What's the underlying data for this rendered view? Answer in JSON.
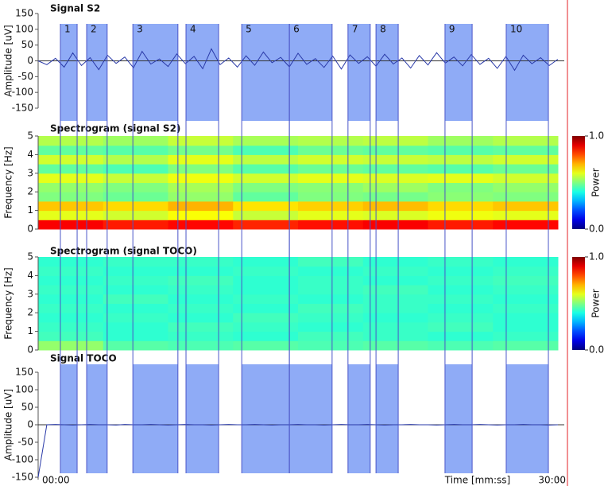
{
  "chart_data": [
    {
      "type": "line",
      "title": "Signal S2",
      "ylabel": "Amplitude  [uV]",
      "color": "#2a3aa8",
      "xlim": [
        0,
        1800
      ],
      "ylim": [
        -150,
        150
      ],
      "yticks": [
        -150,
        -100,
        -50,
        0,
        50,
        100,
        150
      ],
      "segment_color": "#7b9cf5",
      "segments": [
        {
          "label": "1",
          "start": 77,
          "end": 135
        },
        {
          "label": "2",
          "start": 168,
          "end": 239
        },
        {
          "label": "3",
          "start": 328,
          "end": 484
        },
        {
          "label": "4",
          "start": 512,
          "end": 625
        },
        {
          "label": "5",
          "start": 705,
          "end": 870
        },
        {
          "label": "6",
          "start": 870,
          "end": 1018
        },
        {
          "label": "7",
          "start": 1073,
          "end": 1150
        },
        {
          "label": "8",
          "start": 1170,
          "end": 1247
        },
        {
          "label": "9",
          "start": 1409,
          "end": 1503
        },
        {
          "label": "10",
          "start": 1621,
          "end": 1767
        }
      ],
      "x": [
        0,
        30,
        60,
        90,
        120,
        150,
        180,
        210,
        240,
        270,
        300,
        330,
        360,
        390,
        420,
        450,
        480,
        510,
        540,
        570,
        600,
        630,
        660,
        690,
        720,
        750,
        780,
        810,
        840,
        870,
        900,
        930,
        960,
        990,
        1020,
        1050,
        1080,
        1110,
        1140,
        1170,
        1200,
        1230,
        1260,
        1290,
        1320,
        1350,
        1380,
        1410,
        1440,
        1470,
        1500,
        1530,
        1560,
        1590,
        1620,
        1650,
        1680,
        1710,
        1740,
        1770,
        1800
      ],
      "values": [
        0,
        -12,
        8,
        -20,
        25,
        -15,
        10,
        -28,
        18,
        -8,
        12,
        -22,
        30,
        -10,
        6,
        -18,
        22,
        -9,
        14,
        -25,
        38,
        -12,
        9,
        -20,
        16,
        -14,
        28,
        -6,
        11,
        -19,
        24,
        -11,
        7,
        -21,
        15,
        -26,
        19,
        -8,
        13,
        -17,
        21,
        -10,
        9,
        -23,
        17,
        -13,
        26,
        -7,
        12,
        -16,
        20,
        -11,
        8,
        -24,
        14,
        -30,
        18,
        -9,
        10,
        -15,
        5
      ]
    },
    {
      "type": "heatmap",
      "title": "Spectrogram (signal S2)",
      "ylabel": "Frequency  [Hz]",
      "xlim": [
        0,
        1800
      ],
      "ylim": [
        0,
        5
      ],
      "yticks": [
        0,
        1,
        2,
        3,
        4,
        5
      ],
      "zlim": [
        0,
        1
      ],
      "zticks": [
        {
          "value": 0,
          "label": "0.0"
        },
        {
          "value": 1,
          "label": "1.0"
        }
      ],
      "colorbar_label": "Power",
      "z": [
        [
          0.88,
          0.85,
          0.87,
          0.84,
          0.86,
          0.88,
          0.85,
          0.87
        ],
        [
          0.6,
          0.58,
          0.62,
          0.57,
          0.6,
          0.59,
          0.61,
          0.6
        ],
        [
          0.68,
          0.66,
          0.7,
          0.65,
          0.67,
          0.69,
          0.66,
          0.68
        ],
        [
          0.5,
          0.48,
          0.52,
          0.47,
          0.5,
          0.49,
          0.51,
          0.5
        ],
        [
          0.52,
          0.5,
          0.54,
          0.5,
          0.51,
          0.53,
          0.5,
          0.52
        ],
        [
          0.6,
          0.57,
          0.61,
          0.58,
          0.6,
          0.59,
          0.6,
          0.58
        ],
        [
          0.47,
          0.45,
          0.5,
          0.46,
          0.48,
          0.47,
          0.46,
          0.48
        ],
        [
          0.58,
          0.55,
          0.6,
          0.56,
          0.58,
          0.57,
          0.56,
          0.58
        ],
        [
          0.47,
          0.46,
          0.49,
          0.45,
          0.48,
          0.47,
          0.46,
          0.47
        ],
        [
          0.55,
          0.53,
          0.57,
          0.54,
          0.55,
          0.56,
          0.53,
          0.55
        ]
      ]
    },
    {
      "type": "heatmap",
      "title": "Spectrogram (signal TOCO)",
      "ylabel": "Frequency  [Hz]",
      "xlim": [
        0,
        1800
      ],
      "ylim": [
        0,
        5
      ],
      "yticks": [
        0,
        1,
        2,
        3,
        4,
        5
      ],
      "zlim": [
        0,
        1
      ],
      "zticks": [
        {
          "value": 0,
          "label": "0.0"
        },
        {
          "value": 1,
          "label": "1.0"
        }
      ],
      "colorbar_label": "Power",
      "z": [
        [
          0.52,
          0.46,
          0.45,
          0.46,
          0.45,
          0.46,
          0.45,
          0.46
        ],
        [
          0.44,
          0.42,
          0.43,
          0.42,
          0.44,
          0.43,
          0.42,
          0.43
        ],
        [
          0.43,
          0.42,
          0.44,
          0.43,
          0.42,
          0.43,
          0.44,
          0.42
        ],
        [
          0.42,
          0.43,
          0.42,
          0.44,
          0.43,
          0.42,
          0.43,
          0.42
        ],
        [
          0.43,
          0.42,
          0.43,
          0.42,
          0.44,
          0.43,
          0.42,
          0.43
        ],
        [
          0.42,
          0.44,
          0.42,
          0.43,
          0.42,
          0.43,
          0.43,
          0.42
        ],
        [
          0.43,
          0.42,
          0.43,
          0.42,
          0.43,
          0.44,
          0.42,
          0.43
        ],
        [
          0.42,
          0.43,
          0.44,
          0.42,
          0.43,
          0.42,
          0.43,
          0.44
        ],
        [
          0.43,
          0.42,
          0.42,
          0.43,
          0.42,
          0.43,
          0.42,
          0.43
        ],
        [
          0.42,
          0.43,
          0.43,
          0.42,
          0.44,
          0.42,
          0.43,
          0.42
        ]
      ]
    },
    {
      "type": "line",
      "title": "Signal TOCO",
      "ylabel": "Amplitude  [uV]",
      "color": "#2a3aa8",
      "xlim": [
        0,
        1800
      ],
      "ylim": [
        -150,
        150
      ],
      "yticks": [
        -150,
        -100,
        -50,
        0,
        50,
        100,
        150
      ],
      "xticks": [
        {
          "value": 0,
          "label": "00:00"
        },
        {
          "value": 1800,
          "label": "30:00"
        }
      ],
      "xlabel": "Time  [mm:ss]",
      "x": [
        0,
        30,
        60,
        90,
        120,
        150,
        180,
        210,
        240,
        270,
        300,
        330,
        360,
        390,
        420,
        450,
        480,
        510,
        540,
        570,
        600,
        630,
        660,
        690,
        720,
        750,
        780,
        810,
        840,
        870,
        900,
        930,
        960,
        990,
        1020,
        1050,
        1080,
        1110,
        1140,
        1170,
        1200,
        1230,
        1260,
        1290,
        1320,
        1350,
        1380,
        1410,
        1440,
        1470,
        1500,
        1530,
        1560,
        1590,
        1620,
        1650,
        1680,
        1710,
        1740,
        1770,
        1800
      ],
      "values": [
        -150,
        0,
        1,
        0,
        -1,
        0,
        1,
        0,
        0,
        -1,
        1,
        0,
        0,
        1,
        0,
        -1,
        0,
        1,
        0,
        0,
        -1,
        0,
        1,
        0,
        0,
        1,
        0,
        -1,
        0,
        0,
        1,
        0,
        0,
        -1,
        0,
        1,
        0,
        0,
        1,
        0,
        -1,
        0,
        0,
        1,
        0,
        0,
        -1,
        0,
        1,
        0,
        0,
        1,
        0,
        -1,
        0,
        0,
        1,
        0,
        0,
        -1,
        0
      ]
    }
  ]
}
